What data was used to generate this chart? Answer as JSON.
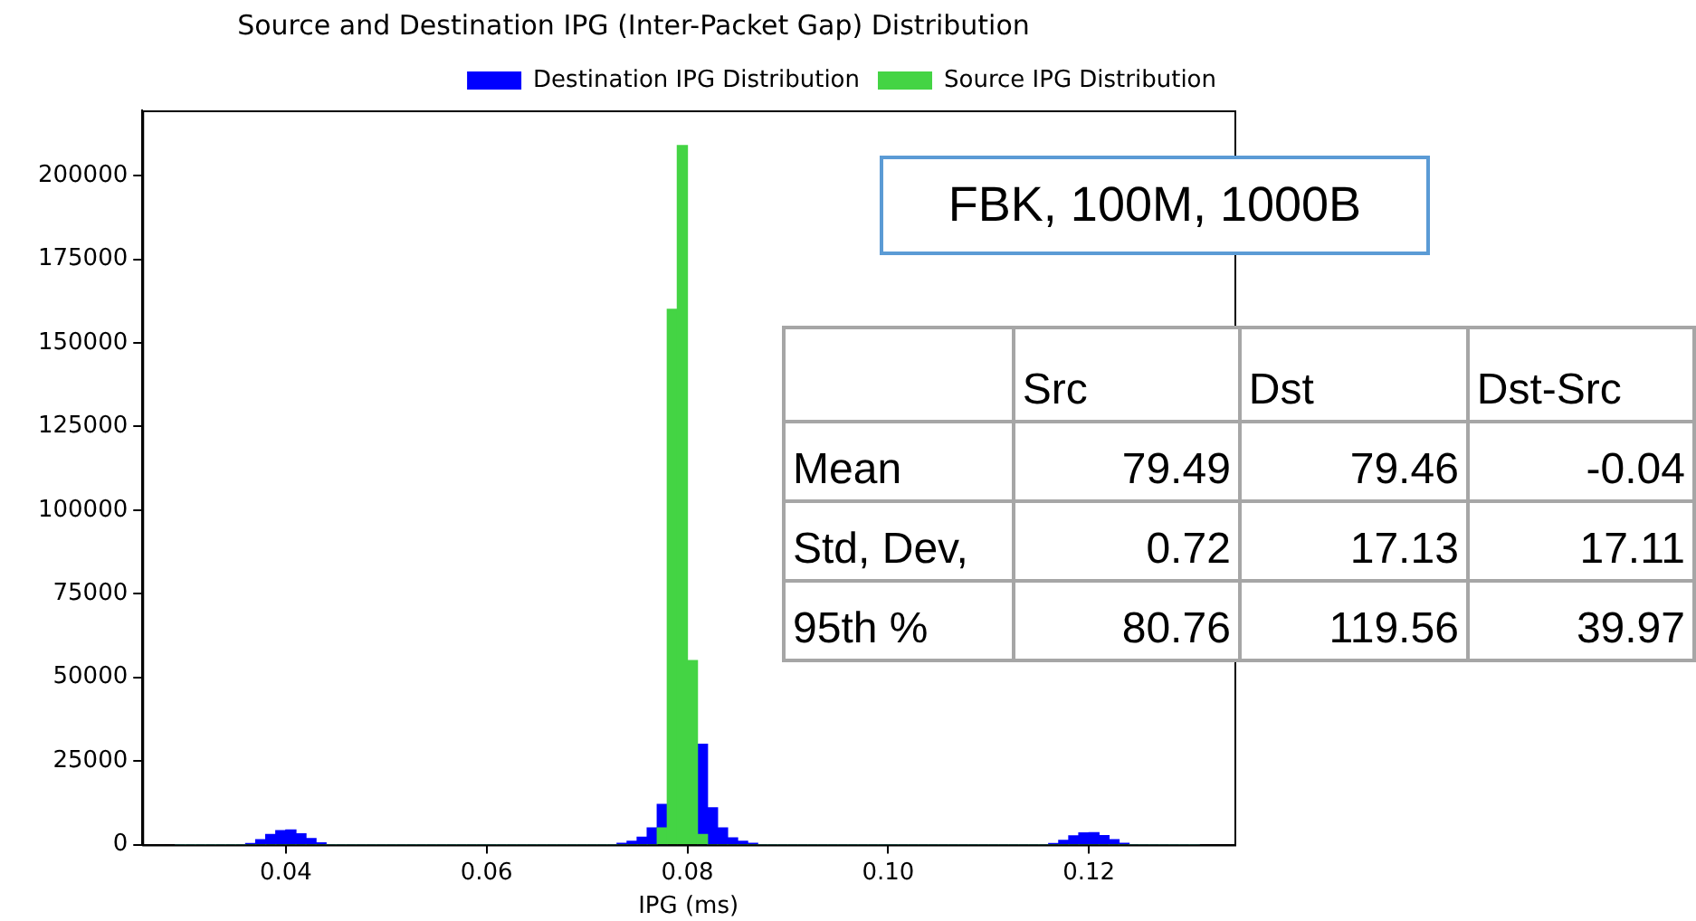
{
  "chart_data": [
    {
      "type": "histogram",
      "title": "Source and Destination IPG (Inter-Packet Gap) Distribution",
      "xlabel": "IPG (ms)",
      "xlim": [
        0.0257,
        0.1345
      ],
      "ylim": [
        0,
        219500
      ],
      "xticks": [
        0.04,
        0.06,
        0.08,
        {
          "value": 0.1,
          "label": "0.10"
        },
        0.12
      ],
      "yticks": [
        0,
        25000,
        50000,
        75000,
        100000,
        125000,
        150000,
        175000,
        200000
      ],
      "grid": false,
      "legend": "top right",
      "annotations": [
        "FBK, 100M, 1000B"
      ],
      "bins": [
        0.029,
        0.03,
        0.031,
        0.032,
        0.033,
        0.034,
        0.035,
        0.036,
        0.037,
        0.038,
        0.039,
        0.04,
        0.041,
        0.042,
        0.043,
        0.044,
        0.045,
        0.046,
        0.047,
        0.048,
        0.049,
        0.05,
        0.051,
        0.052,
        0.053,
        0.054,
        0.055,
        0.056,
        0.057,
        0.058,
        0.059,
        0.06,
        0.061,
        0.062,
        0.063,
        0.064,
        0.065,
        0.066,
        0.067,
        0.068,
        0.069,
        0.07,
        0.071,
        0.072,
        0.073,
        0.074,
        0.075,
        0.076,
        0.077,
        0.078,
        0.079,
        0.08,
        0.081,
        0.082,
        0.083,
        0.084,
        0.085,
        0.086,
        0.087,
        0.088,
        0.089,
        0.09,
        0.091,
        0.092,
        0.093,
        0.094,
        0.095,
        0.096,
        0.097,
        0.098,
        0.099,
        0.1,
        0.101,
        0.102,
        0.103,
        0.104,
        0.105,
        0.106,
        0.107,
        0.108,
        0.109,
        0.11,
        0.111,
        0.112,
        0.113,
        0.114,
        0.115,
        0.116,
        0.117,
        0.118,
        0.119,
        0.12,
        0.121,
        0.122,
        0.123,
        0.124,
        0.125,
        0.126,
        0.127,
        0.128,
        0.129,
        0.13,
        0.131
      ],
      "series": [
        {
          "name": "Destination IPG Distribution",
          "color": "#0000ff",
          "values": [
            0,
            0,
            0,
            0,
            0,
            0,
            0,
            300,
            1500,
            3000,
            4200,
            4400,
            3200,
            1800,
            500,
            0,
            0,
            0,
            0,
            0,
            0,
            0,
            0,
            0,
            0,
            0,
            0,
            0,
            0,
            0,
            0,
            0,
            0,
            0,
            0,
            0,
            0,
            0,
            0,
            0,
            0,
            0,
            0,
            0,
            400,
            1000,
            2200,
            5000,
            12000,
            null,
            null,
            null,
            30000,
            11000,
            5000,
            2000,
            1000,
            400,
            0,
            0,
            0,
            0,
            0,
            0,
            0,
            0,
            0,
            0,
            0,
            0,
            0,
            0,
            0,
            0,
            0,
            0,
            0,
            0,
            0,
            0,
            0,
            0,
            0,
            0,
            0,
            0,
            0,
            300,
            1300,
            2600,
            3500,
            3600,
            2700,
            1500,
            400,
            0,
            0,
            0,
            0,
            0,
            0,
            0
          ]
        },
        {
          "name": "Source IPG Distribution",
          "color": "#44d444",
          "values": [
            0,
            0,
            0,
            0,
            0,
            0,
            0,
            0,
            0,
            0,
            0,
            0,
            0,
            0,
            0,
            0,
            0,
            0,
            0,
            0,
            0,
            0,
            0,
            0,
            0,
            0,
            0,
            0,
            0,
            0,
            0,
            0,
            0,
            0,
            0,
            0,
            0,
            0,
            0,
            0,
            0,
            0,
            0,
            0,
            0,
            0,
            0,
            0,
            5000,
            160000,
            209000,
            55000,
            3000,
            0,
            0,
            0,
            0,
            0,
            0,
            0,
            0,
            0,
            0,
            0,
            0,
            0,
            0,
            0,
            0,
            0,
            0,
            0,
            0,
            0,
            0,
            0,
            0,
            0,
            0,
            0,
            0,
            0,
            0,
            0,
            0,
            0,
            0,
            0,
            0,
            0,
            0,
            0,
            0,
            0,
            0,
            0,
            0,
            0,
            0,
            0,
            0,
            0
          ]
        }
      ]
    },
    {
      "type": "other",
      "categories": [
        null,
        "Src",
        "Dst",
        "Dst-Src"
      ],
      "y_categories": [
        "Mean",
        "Std, Dev,",
        "95th %"
      ],
      "cell_labels": [
        [
          "79.49",
          "79.46",
          "-0.04"
        ],
        [
          "0.72",
          "17.13",
          "17.11"
        ],
        [
          "80.76",
          "119.56",
          "39.97"
        ]
      ]
    }
  ]
}
